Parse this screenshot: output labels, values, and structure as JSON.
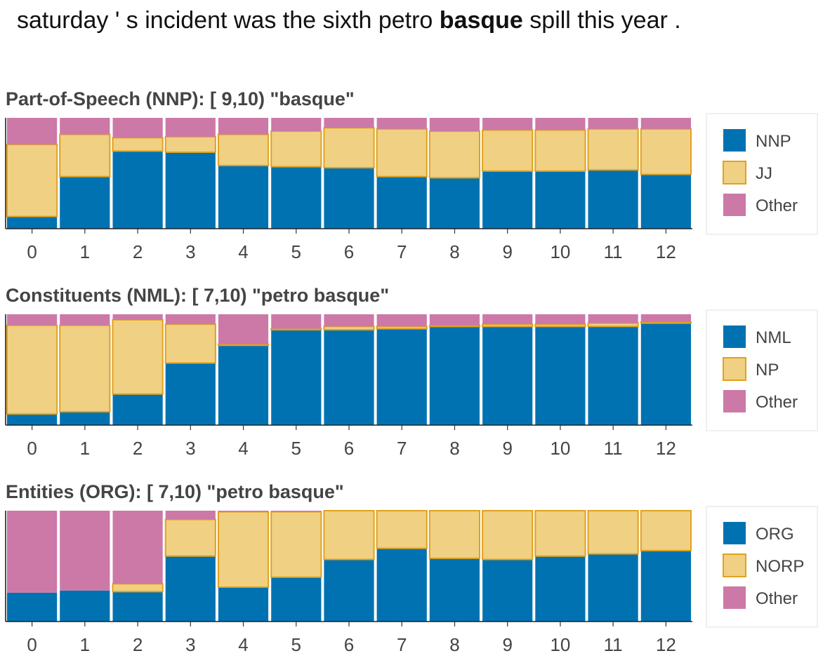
{
  "sentence": {
    "before": "saturday ' s incident was the sixth petro ",
    "highlight": "basque",
    "after": " spill this year ."
  },
  "colors": {
    "blue": "#0072b2",
    "yellow": "#f0d082",
    "yellow_stroke": "#e0a21f",
    "pink": "#cc79a7"
  },
  "chart_data": [
    {
      "type": "bar",
      "stacked": true,
      "title": "Part-of-Speech (NNP): [ 9,10) \"basque\"",
      "categories": [
        "0",
        "1",
        "2",
        "3",
        "4",
        "5",
        "6",
        "7",
        "8",
        "9",
        "10",
        "11",
        "12"
      ],
      "ylim": [
        0,
        1
      ],
      "series": [
        {
          "name": "NNP",
          "color": "#0072b2",
          "values": [
            0.11,
            0.47,
            0.7,
            0.69,
            0.57,
            0.56,
            0.55,
            0.47,
            0.46,
            0.52,
            0.52,
            0.53,
            0.49
          ]
        },
        {
          "name": "JJ",
          "color": "#f0d082",
          "values": [
            0.65,
            0.38,
            0.12,
            0.14,
            0.28,
            0.32,
            0.36,
            0.43,
            0.42,
            0.37,
            0.37,
            0.37,
            0.41
          ]
        },
        {
          "name": "Other",
          "color": "#cc79a7",
          "values": [
            0.24,
            0.15,
            0.18,
            0.17,
            0.15,
            0.12,
            0.09,
            0.1,
            0.12,
            0.11,
            0.11,
            0.1,
            0.1
          ]
        }
      ],
      "legend": "right"
    },
    {
      "type": "bar",
      "stacked": true,
      "title": "Constituents (NML): [ 7,10) \"petro basque\"",
      "categories": [
        "0",
        "1",
        "2",
        "3",
        "4",
        "5",
        "6",
        "7",
        "8",
        "9",
        "10",
        "11",
        "12"
      ],
      "ylim": [
        0,
        1
      ],
      "series": [
        {
          "name": "NML",
          "color": "#0072b2",
          "values": [
            0.1,
            0.12,
            0.28,
            0.56,
            0.72,
            0.86,
            0.86,
            0.87,
            0.89,
            0.89,
            0.89,
            0.89,
            0.92
          ]
        },
        {
          "name": "NP",
          "color": "#f0d082",
          "values": [
            0.8,
            0.78,
            0.67,
            0.35,
            0.01,
            0.01,
            0.03,
            0.02,
            0.01,
            0.02,
            0.02,
            0.03,
            0.01
          ]
        },
        {
          "name": "Other",
          "color": "#cc79a7",
          "values": [
            0.1,
            0.1,
            0.05,
            0.09,
            0.27,
            0.13,
            0.11,
            0.11,
            0.1,
            0.09,
            0.09,
            0.08,
            0.07
          ]
        }
      ],
      "legend": "right"
    },
    {
      "type": "bar",
      "stacked": true,
      "title": "Entities (ORG): [ 7,10) \"petro basque\"",
      "categories": [
        "0",
        "1",
        "2",
        "3",
        "4",
        "5",
        "6",
        "7",
        "8",
        "9",
        "10",
        "11",
        "12"
      ],
      "ylim": [
        0,
        1
      ],
      "series": [
        {
          "name": "ORG",
          "color": "#0072b2",
          "values": [
            0.26,
            0.28,
            0.27,
            0.59,
            0.31,
            0.4,
            0.56,
            0.66,
            0.57,
            0.56,
            0.59,
            0.61,
            0.64
          ]
        },
        {
          "name": "NORP",
          "color": "#f0d082",
          "values": [
            0.0,
            0.0,
            0.07,
            0.33,
            0.68,
            0.59,
            0.44,
            0.34,
            0.43,
            0.44,
            0.41,
            0.39,
            0.36
          ]
        },
        {
          "name": "Other",
          "color": "#cc79a7",
          "values": [
            0.74,
            0.72,
            0.66,
            0.08,
            0.01,
            0.01,
            0.0,
            0.0,
            0.0,
            0.0,
            0.0,
            0.0,
            0.0
          ]
        }
      ],
      "legend": "right"
    }
  ]
}
